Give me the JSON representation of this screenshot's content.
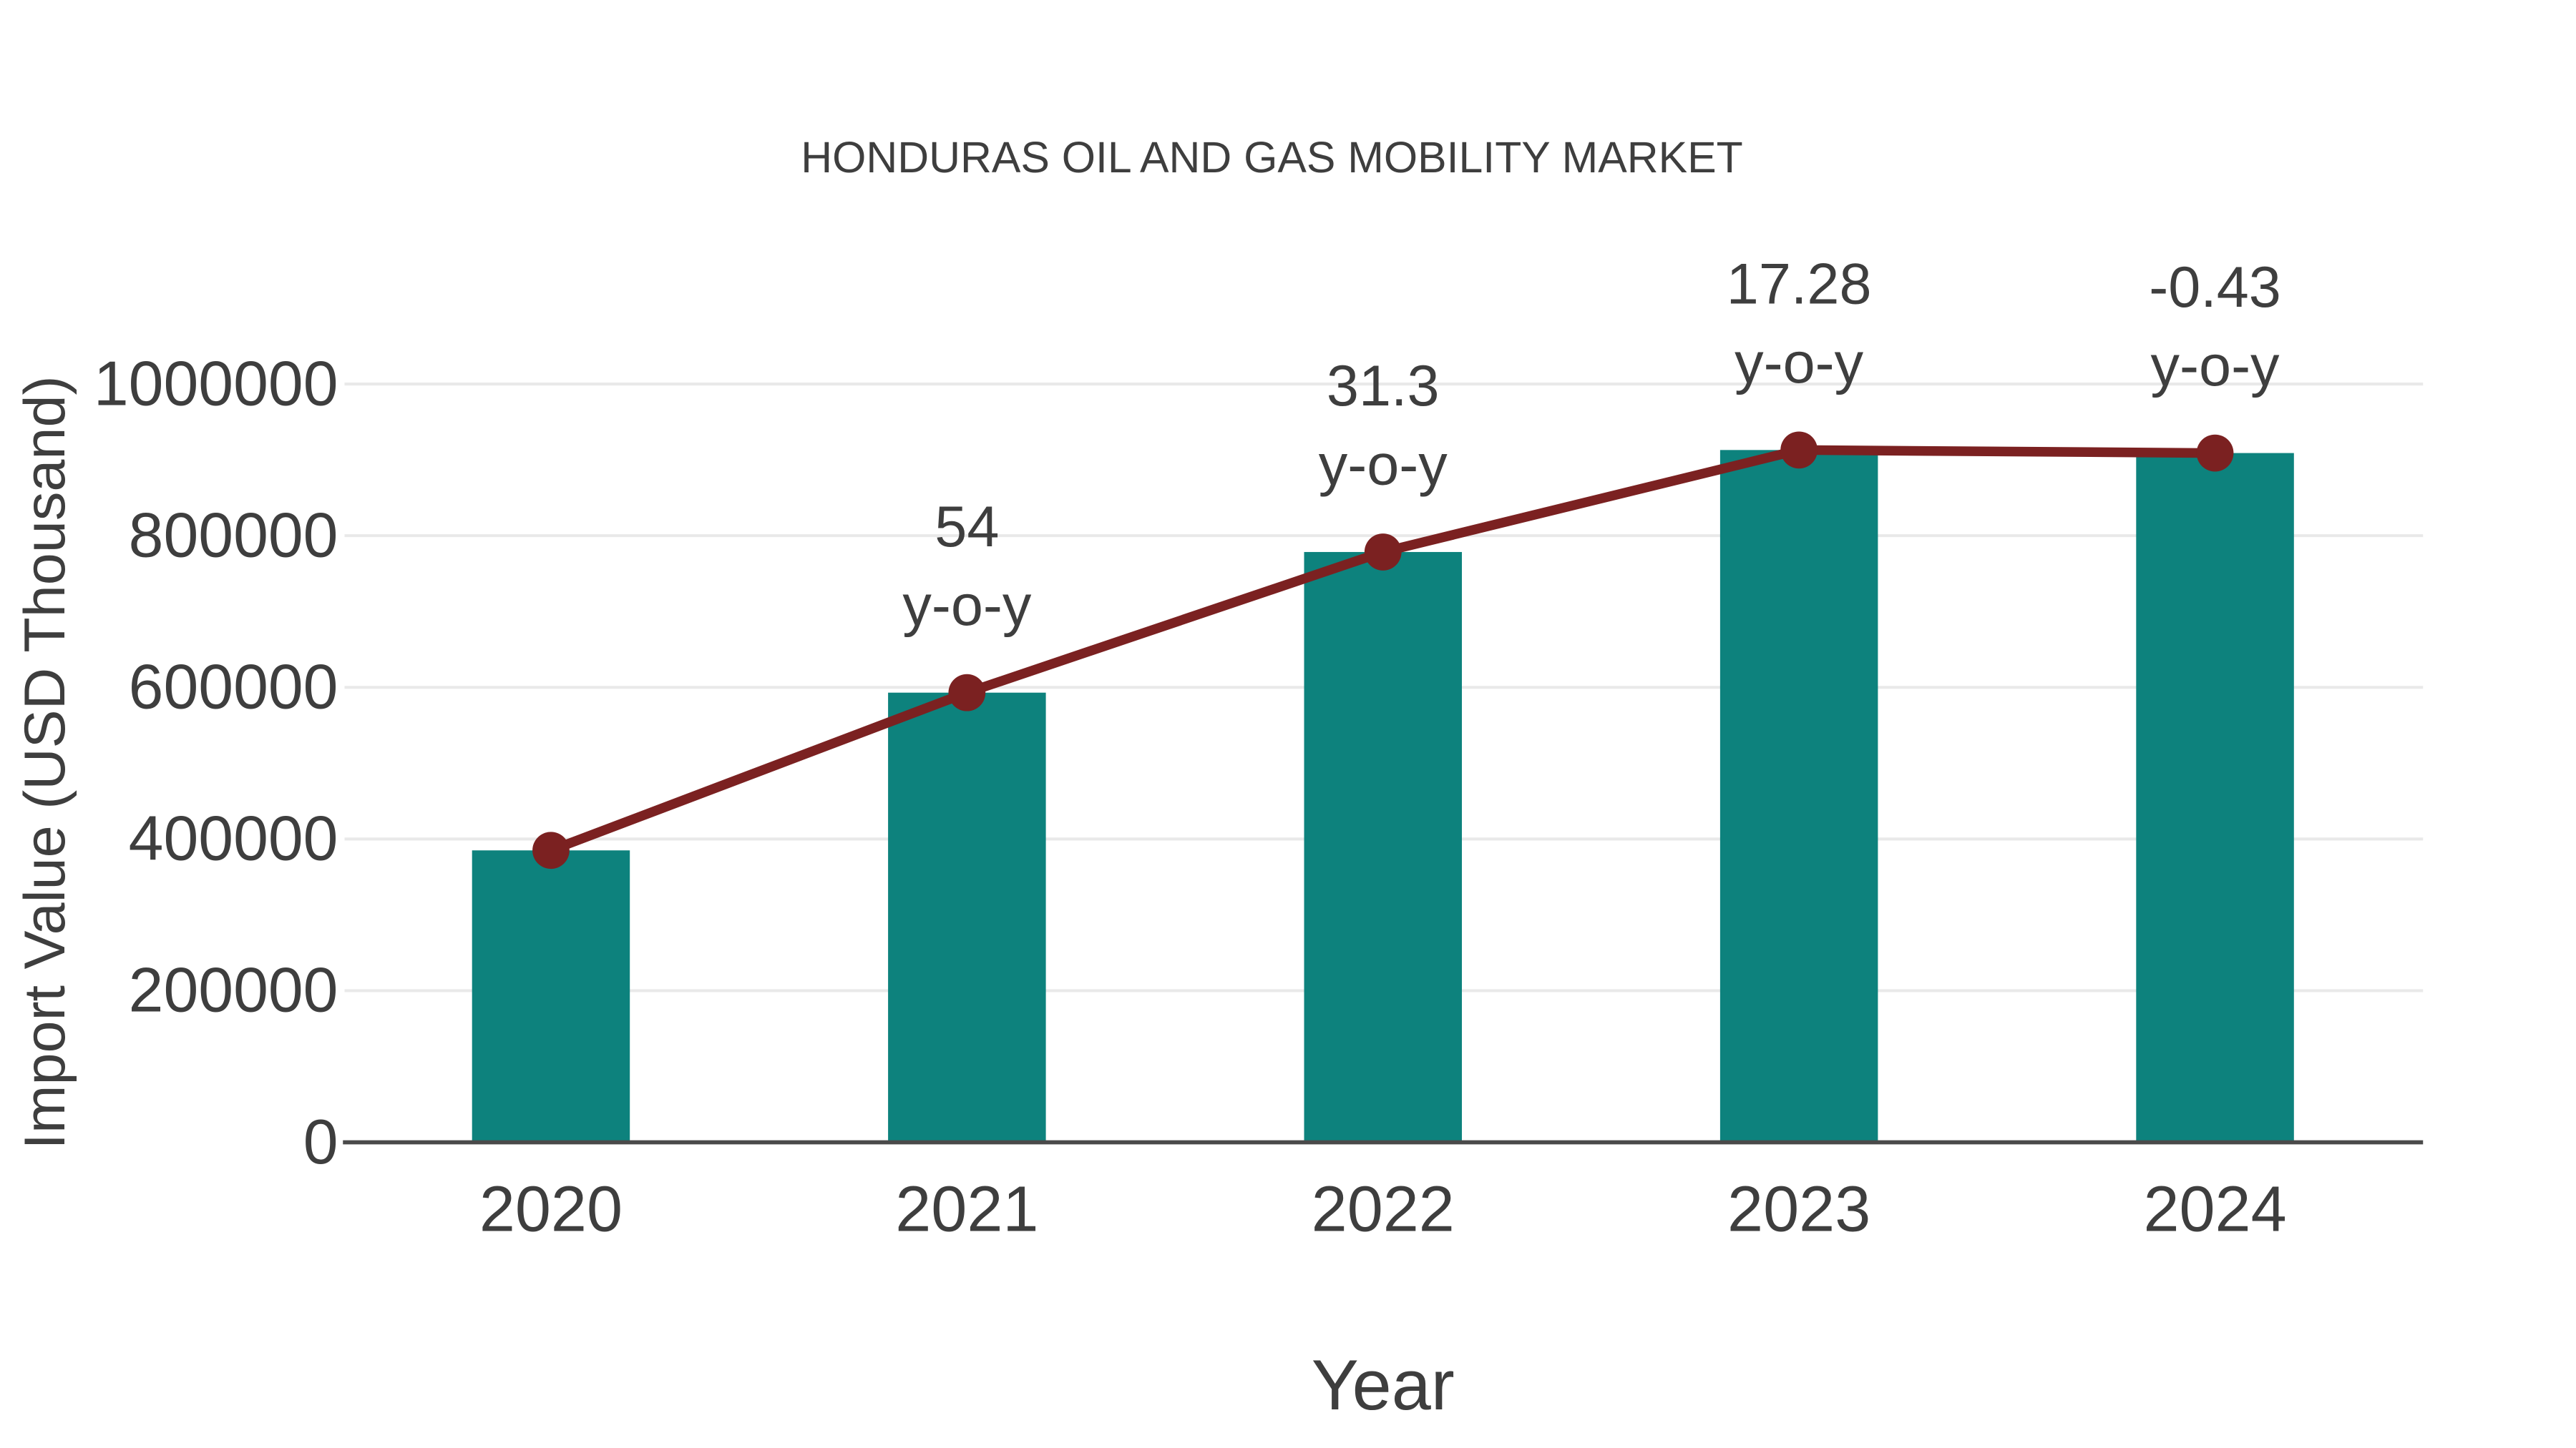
{
  "chart_data": {
    "type": "bar+line",
    "title": "HONDURAS OIL AND GAS MOBILITY MARKET",
    "xlabel": "Year",
    "ylabel": "Import Value (USD Thousand)",
    "categories": [
      "2020",
      "2021",
      "2022",
      "2023",
      "2024"
    ],
    "series": [
      {
        "name": "Import Value (USD Thousand)",
        "type": "bar",
        "color": "#0d827d",
        "values": [
          385000,
          593000,
          778500,
          913000,
          909000
        ]
      },
      {
        "name": "y-o-y growth (%)",
        "type": "line",
        "color": "#7b2121",
        "marker_color": "#7b2121",
        "values": [
          null,
          54,
          31.3,
          17.28,
          -0.43
        ],
        "note": "line passes through the bar-top values on the same value axis"
      }
    ],
    "annotations": [
      {
        "category": "2021",
        "value_label": "54",
        "suffix_label": "y-o-y"
      },
      {
        "category": "2022",
        "value_label": "31.3",
        "suffix_label": "y-o-y"
      },
      {
        "category": "2023",
        "value_label": "17.28",
        "suffix_label": "y-o-y"
      },
      {
        "category": "2024",
        "value_label": "-0.43",
        "suffix_label": "y-o-y"
      }
    ],
    "ylim": [
      0,
      1000000
    ],
    "yticks": [
      0,
      200000,
      400000,
      600000,
      800000,
      1000000
    ],
    "ytick_labels": [
      "0",
      "200000",
      "400000",
      "600000",
      "800000",
      "1000000"
    ],
    "grid": "horizontal-light",
    "legend": "none"
  },
  "colors": {
    "background": "#ffffff",
    "grid": "#e9e9e9",
    "axis_line": "#4a4a4a",
    "text": "#3e3e3e",
    "bar": "#0d827d",
    "line": "#7b2121"
  }
}
